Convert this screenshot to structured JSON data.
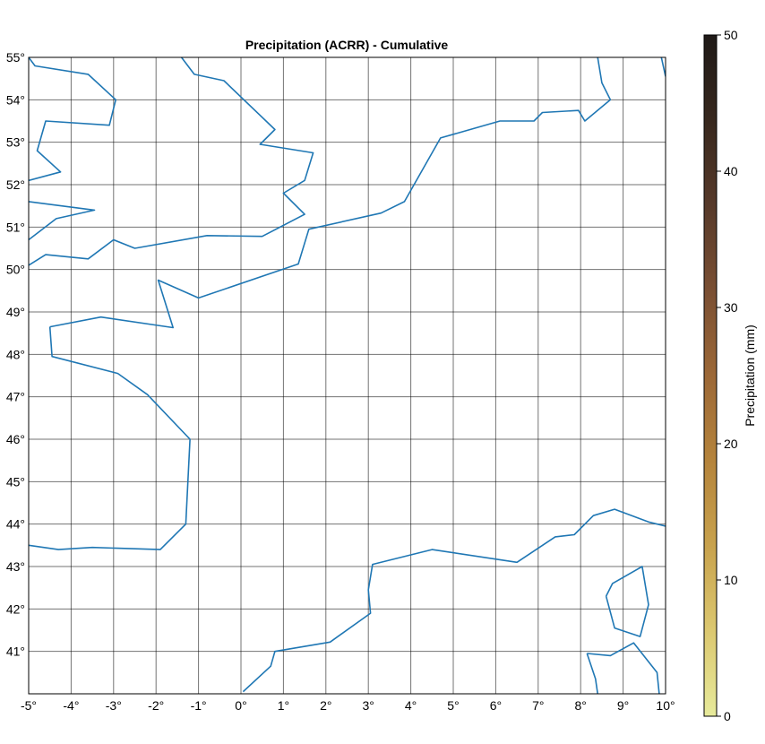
{
  "title": "Precipitation (ACRR) - Cumulative",
  "map": {
    "lon_range": [
      -5,
      10
    ],
    "lat_range": [
      40,
      55
    ],
    "lon_ticks": [
      -5,
      -4,
      -3,
      -2,
      -1,
      0,
      1,
      2,
      3,
      4,
      5,
      6,
      7,
      8,
      9,
      10
    ],
    "lat_ticks": [
      41,
      42,
      43,
      44,
      45,
      46,
      47,
      48,
      49,
      50,
      51,
      52,
      53,
      54,
      55
    ],
    "lon_tick_labels": [
      "-5°",
      "-4°",
      "-3°",
      "-2°",
      "-1°",
      "0°",
      "1°",
      "2°",
      "3°",
      "4°",
      "5°",
      "6°",
      "7°",
      "8°",
      "9°",
      "10°"
    ],
    "lat_tick_labels": [
      "41°",
      "42°",
      "43°",
      "44°",
      "45°",
      "46°",
      "47°",
      "48°",
      "49°",
      "50°",
      "51°",
      "52°",
      "53°",
      "54°",
      "55°"
    ],
    "grid": true,
    "coastline_color": "#1f77b4",
    "coastlines": [
      [
        [
          -5.0,
          55.0
        ],
        [
          -4.85,
          54.8
        ],
        [
          -3.6,
          54.6
        ],
        [
          -2.95,
          54.0
        ],
        [
          -3.1,
          53.4
        ],
        [
          -4.6,
          53.5
        ],
        [
          -4.8,
          52.8
        ],
        [
          -4.25,
          52.3
        ],
        [
          -5.0,
          52.1
        ]
      ],
      [
        [
          -5.0,
          51.6
        ],
        [
          -3.45,
          51.4
        ],
        [
          -4.35,
          51.2
        ],
        [
          -5.0,
          50.7
        ]
      ],
      [
        [
          -5.0,
          50.1
        ],
        [
          -4.6,
          50.35
        ],
        [
          -3.6,
          50.25
        ],
        [
          -3.0,
          50.7
        ],
        [
          -2.5,
          50.5
        ],
        [
          -0.8,
          50.8
        ],
        [
          0.5,
          50.78
        ],
        [
          1.5,
          51.3
        ],
        [
          1.0,
          51.8
        ],
        [
          1.5,
          52.1
        ],
        [
          1.7,
          52.75
        ],
        [
          0.45,
          52.95
        ],
        [
          0.8,
          53.3
        ],
        [
          -0.4,
          54.45
        ],
        [
          -1.1,
          54.6
        ],
        [
          -1.4,
          55.0
        ]
      ],
      [
        [
          -4.5,
          48.65
        ],
        [
          -3.3,
          48.88
        ],
        [
          -1.6,
          48.63
        ],
        [
          -1.95,
          49.75
        ],
        [
          -1.0,
          49.33
        ],
        [
          1.35,
          50.13
        ],
        [
          1.6,
          50.95
        ],
        [
          3.3,
          51.33
        ],
        [
          3.85,
          51.6
        ],
        [
          4.7,
          53.1
        ],
        [
          6.1,
          53.5
        ],
        [
          6.9,
          53.5
        ],
        [
          7.1,
          53.7
        ],
        [
          7.95,
          53.75
        ],
        [
          8.1,
          53.5
        ],
        [
          8.7,
          54.0
        ],
        [
          8.5,
          54.4
        ],
        [
          8.4,
          55.0
        ]
      ],
      [
        [
          -4.5,
          48.65
        ],
        [
          -4.45,
          47.95
        ],
        [
          -2.9,
          47.55
        ],
        [
          -2.2,
          47.05
        ],
        [
          -1.2,
          46.0
        ],
        [
          -1.3,
          44.0
        ],
        [
          -1.9,
          43.4
        ],
        [
          -3.5,
          43.45
        ],
        [
          -4.3,
          43.4
        ],
        [
          -5.0,
          43.5
        ]
      ],
      [
        [
          0.05,
          40.05
        ],
        [
          0.7,
          40.65
        ],
        [
          0.8,
          41.0
        ],
        [
          2.1,
          41.22
        ],
        [
          3.05,
          41.9
        ],
        [
          3.0,
          42.45
        ],
        [
          3.1,
          43.05
        ],
        [
          4.5,
          43.4
        ],
        [
          6.5,
          43.1
        ],
        [
          7.4,
          43.7
        ],
        [
          7.85,
          43.75
        ],
        [
          8.3,
          44.2
        ],
        [
          8.8,
          44.35
        ],
        [
          9.6,
          44.05
        ],
        [
          10.0,
          43.95
        ]
      ],
      [
        [
          8.6,
          42.3
        ],
        [
          8.75,
          42.6
        ],
        [
          9.45,
          43.0
        ],
        [
          9.6,
          42.1
        ],
        [
          9.4,
          41.35
        ],
        [
          8.8,
          41.55
        ],
        [
          8.6,
          42.3
        ]
      ],
      [
        [
          8.15,
          40.95
        ],
        [
          8.7,
          40.9
        ],
        [
          9.25,
          41.2
        ],
        [
          9.8,
          40.5
        ],
        [
          9.85,
          40.0
        ]
      ],
      [
        [
          8.4,
          40.0
        ],
        [
          8.35,
          40.35
        ],
        [
          8.15,
          40.95
        ]
      ],
      [
        [
          9.9,
          55.0
        ],
        [
          10.0,
          54.55
        ]
      ]
    ]
  },
  "colorbar": {
    "label": "Precipitation (mm)",
    "min": 0,
    "max": 50,
    "ticks": [
      0,
      10,
      20,
      30,
      40,
      50
    ],
    "tick_labels": [
      "0",
      "10",
      "20",
      "30",
      "40",
      "50"
    ],
    "colors": [
      "#e7ea9b",
      "#dcc870",
      "#c8a24d",
      "#b5843c",
      "#9c6837",
      "#7a4f33",
      "#573a2a",
      "#38281e",
      "#1f1a17"
    ]
  }
}
